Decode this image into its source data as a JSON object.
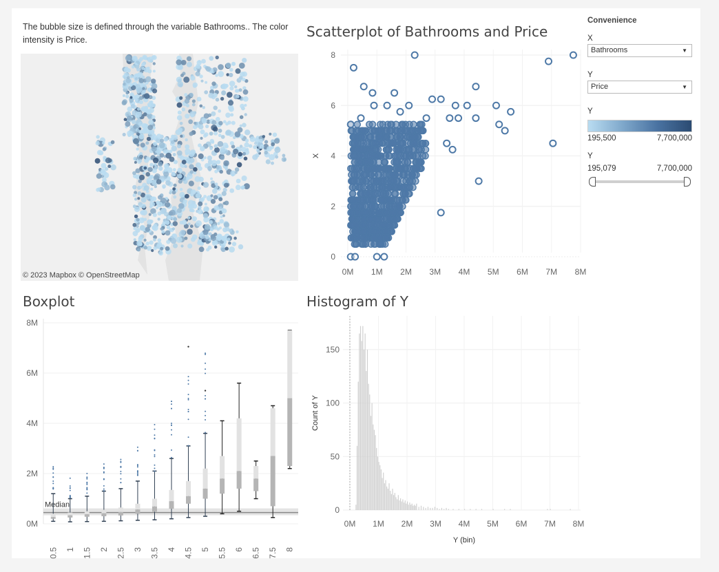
{
  "caption": "The bubble size is defined through the variable Bathrooms.. The color intensity is Price.",
  "map": {
    "attribution": "© 2023 Mapbox  © OpenStreetMap",
    "colors": {
      "water": "#e3e3e3",
      "land": "#f0f0f0",
      "dot_low": "#b9dcf1",
      "dot_high": "#2b4b72"
    }
  },
  "titles": {
    "scatter": "Scatterplot of Bathrooms and Price",
    "boxplot": "Boxplot",
    "histogram": "Histogram of Y"
  },
  "legend": {
    "heading": "Convenience",
    "x_label": "X",
    "x_value": "Bathrooms",
    "y_label": "Y",
    "y_value": "Price",
    "color_label": "Y",
    "color_min": "195,500",
    "color_max": "7,700,000",
    "range_label": "Y",
    "range_min": "195,079",
    "range_max": "7,700,000"
  },
  "chart_data": [
    {
      "type": "scatter",
      "title": "Scatterplot of Bathrooms and Price",
      "ylabel": "X",
      "xlabel": "",
      "x_ticks": [
        "0M",
        "1M",
        "2M",
        "3M",
        "4M",
        "5M",
        "6M",
        "7M",
        "8M"
      ],
      "y_ticks": [
        "0",
        "2",
        "4",
        "6",
        "8"
      ],
      "xlim": [
        0,
        8000000
      ],
      "ylim": [
        0,
        8
      ],
      "color": "#4e79a7",
      "points": [
        [
          2300000,
          8
        ],
        [
          7750000,
          8
        ],
        [
          200000,
          7.5
        ],
        [
          6900000,
          7.75
        ],
        [
          550000,
          6.75
        ],
        [
          850000,
          6.5
        ],
        [
          1600000,
          6.5
        ],
        [
          3200000,
          6.25
        ],
        [
          4400000,
          6.75
        ],
        [
          7050000,
          4.5
        ],
        [
          4500000,
          3
        ],
        [
          3200000,
          1.75
        ],
        [
          5100000,
          6
        ],
        [
          5600000,
          5.75
        ],
        [
          4100000,
          6
        ],
        [
          5200000,
          5.25
        ],
        [
          5400000,
          5
        ],
        [
          3700000,
          6
        ],
        [
          3500000,
          5.5
        ],
        [
          4400000,
          5.5
        ],
        [
          900000,
          6
        ],
        [
          1350000,
          6
        ],
        [
          2100000,
          6
        ],
        [
          2900000,
          6.25
        ],
        [
          3800000,
          5.5
        ],
        [
          3600000,
          4.25
        ],
        [
          3400000,
          4.5
        ],
        [
          100000,
          0
        ],
        [
          250000,
          0
        ],
        [
          1000000,
          0
        ],
        [
          1250000,
          0
        ],
        [
          100000,
          5.25
        ],
        [
          450000,
          5.5
        ],
        [
          1800000,
          5.75
        ],
        [
          2700000,
          5.5
        ]
      ],
      "dense_region": {
        "x_range": [
          0,
          2600000
        ],
        "y_range": [
          0.5,
          5.25
        ]
      }
    },
    {
      "type": "box",
      "title": "Boxplot",
      "categories": [
        "0.5",
        "1",
        "1.5",
        "2",
        "2.5",
        "3",
        "3.5",
        "4",
        "4.5",
        "5",
        "5.5",
        "6",
        "6.5",
        "7.5",
        "8"
      ],
      "y_ticks": [
        "0M",
        "2M",
        "4M",
        "6M",
        "8M"
      ],
      "ylim": [
        0,
        8000000
      ],
      "reference_line": {
        "label": "Median",
        "value": 450000
      },
      "boxes": [
        {
          "x": 0.5,
          "min": 100000,
          "q1": 200000,
          "median": 270000,
          "q3": 400000,
          "max": 1200000
        },
        {
          "x": 1,
          "min": 80000,
          "q1": 250000,
          "median": 340000,
          "q3": 450000,
          "max": 1000000
        },
        {
          "x": 1.5,
          "min": 90000,
          "q1": 280000,
          "median": 380000,
          "q3": 500000,
          "max": 1100000
        },
        {
          "x": 2,
          "min": 100000,
          "q1": 300000,
          "median": 420000,
          "q3": 560000,
          "max": 1300000
        },
        {
          "x": 2.5,
          "min": 120000,
          "q1": 330000,
          "median": 470000,
          "q3": 650000,
          "max": 1400000
        },
        {
          "x": 3,
          "min": 140000,
          "q1": 400000,
          "median": 570000,
          "q3": 800000,
          "max": 1700000
        },
        {
          "x": 3.5,
          "min": 160000,
          "q1": 480000,
          "median": 690000,
          "q3": 1000000,
          "max": 2100000
        },
        {
          "x": 4,
          "min": 200000,
          "q1": 600000,
          "median": 900000,
          "q3": 1350000,
          "max": 2600000
        },
        {
          "x": 4.5,
          "min": 250000,
          "q1": 800000,
          "median": 1100000,
          "q3": 1700000,
          "max": 3100000
        },
        {
          "x": 5,
          "min": 300000,
          "q1": 1000000,
          "median": 1400000,
          "q3": 2200000,
          "max": 3600000
        },
        {
          "x": 5.5,
          "min": 400000,
          "q1": 1200000,
          "median": 1800000,
          "q3": 2700000,
          "max": 4100000
        },
        {
          "x": 6,
          "min": 500000,
          "q1": 1400000,
          "median": 2100000,
          "q3": 4200000,
          "max": 5600000
        },
        {
          "x": 6.5,
          "min": 1000000,
          "q1": 1300000,
          "median": 1800000,
          "q3": 2300000,
          "max": 2500000
        },
        {
          "x": 7.5,
          "min": 250000,
          "q1": 700000,
          "median": 2700000,
          "q3": 4600000,
          "max": 4700000
        },
        {
          "x": 8,
          "min": 2200000,
          "q1": 2300000,
          "median": 5000000,
          "q3": 7700000,
          "max": 7700000
        }
      ]
    },
    {
      "type": "bar",
      "title": "Histogram of Y",
      "xlabel": "Y (bin)",
      "ylabel": "Count of Y",
      "x_ticks": [
        "0M",
        "1M",
        "2M",
        "3M",
        "4M",
        "5M",
        "6M",
        "7M",
        "8M"
      ],
      "y_ticks": [
        "0",
        "50",
        "100",
        "150"
      ],
      "xlim": [
        0,
        8000000
      ],
      "ylim": [
        0,
        175
      ],
      "bin_width": 40000,
      "color": "#cfcfcf",
      "bins": [
        {
          "x": 200000,
          "y": 5
        },
        {
          "x": 240000,
          "y": 60
        },
        {
          "x": 280000,
          "y": 120
        },
        {
          "x": 320000,
          "y": 165
        },
        {
          "x": 360000,
          "y": 172
        },
        {
          "x": 400000,
          "y": 158
        },
        {
          "x": 440000,
          "y": 172
        },
        {
          "x": 480000,
          "y": 150
        },
        {
          "x": 520000,
          "y": 165
        },
        {
          "x": 560000,
          "y": 130
        },
        {
          "x": 600000,
          "y": 150
        },
        {
          "x": 640000,
          "y": 118
        },
        {
          "x": 680000,
          "y": 108
        },
        {
          "x": 720000,
          "y": 88
        },
        {
          "x": 760000,
          "y": 100
        },
        {
          "x": 800000,
          "y": 80
        },
        {
          "x": 840000,
          "y": 75
        },
        {
          "x": 880000,
          "y": 70
        },
        {
          "x": 920000,
          "y": 58
        },
        {
          "x": 960000,
          "y": 50
        },
        {
          "x": 1000000,
          "y": 45
        },
        {
          "x": 1040000,
          "y": 42
        },
        {
          "x": 1080000,
          "y": 38
        },
        {
          "x": 1120000,
          "y": 30
        },
        {
          "x": 1160000,
          "y": 35
        },
        {
          "x": 1200000,
          "y": 25
        },
        {
          "x": 1240000,
          "y": 28
        },
        {
          "x": 1280000,
          "y": 22
        },
        {
          "x": 1320000,
          "y": 20
        },
        {
          "x": 1360000,
          "y": 25
        },
        {
          "x": 1400000,
          "y": 18
        },
        {
          "x": 1440000,
          "y": 15
        },
        {
          "x": 1480000,
          "y": 20
        },
        {
          "x": 1520000,
          "y": 14
        },
        {
          "x": 1560000,
          "y": 16
        },
        {
          "x": 1600000,
          "y": 12
        },
        {
          "x": 1640000,
          "y": 10
        },
        {
          "x": 1680000,
          "y": 14
        },
        {
          "x": 1720000,
          "y": 9
        },
        {
          "x": 1760000,
          "y": 11
        },
        {
          "x": 1800000,
          "y": 8
        },
        {
          "x": 1840000,
          "y": 10
        },
        {
          "x": 1880000,
          "y": 7
        },
        {
          "x": 1920000,
          "y": 9
        },
        {
          "x": 1960000,
          "y": 6
        },
        {
          "x": 2000000,
          "y": 8
        },
        {
          "x": 2040000,
          "y": 5
        },
        {
          "x": 2080000,
          "y": 7
        },
        {
          "x": 2120000,
          "y": 5
        },
        {
          "x": 2160000,
          "y": 6
        },
        {
          "x": 2200000,
          "y": 4
        },
        {
          "x": 2240000,
          "y": 5
        },
        {
          "x": 2280000,
          "y": 4
        },
        {
          "x": 2320000,
          "y": 6
        },
        {
          "x": 2400000,
          "y": 3
        },
        {
          "x": 2480000,
          "y": 4
        },
        {
          "x": 2560000,
          "y": 3
        },
        {
          "x": 2640000,
          "y": 2
        },
        {
          "x": 2720000,
          "y": 3
        },
        {
          "x": 2800000,
          "y": 2
        },
        {
          "x": 2880000,
          "y": 2
        },
        {
          "x": 2960000,
          "y": 3
        },
        {
          "x": 3040000,
          "y": 2
        },
        {
          "x": 3120000,
          "y": 1
        },
        {
          "x": 3200000,
          "y": 2
        },
        {
          "x": 3280000,
          "y": 1
        },
        {
          "x": 3360000,
          "y": 2
        },
        {
          "x": 3440000,
          "y": 1
        },
        {
          "x": 3600000,
          "y": 1
        },
        {
          "x": 3800000,
          "y": 1
        },
        {
          "x": 4000000,
          "y": 1
        },
        {
          "x": 4200000,
          "y": 1
        },
        {
          "x": 4400000,
          "y": 1
        },
        {
          "x": 4600000,
          "y": 1
        },
        {
          "x": 5000000,
          "y": 1
        },
        {
          "x": 5400000,
          "y": 1
        },
        {
          "x": 5600000,
          "y": 1
        },
        {
          "x": 6900000,
          "y": 1
        },
        {
          "x": 7000000,
          "y": 1
        },
        {
          "x": 7700000,
          "y": 1
        }
      ]
    }
  ]
}
